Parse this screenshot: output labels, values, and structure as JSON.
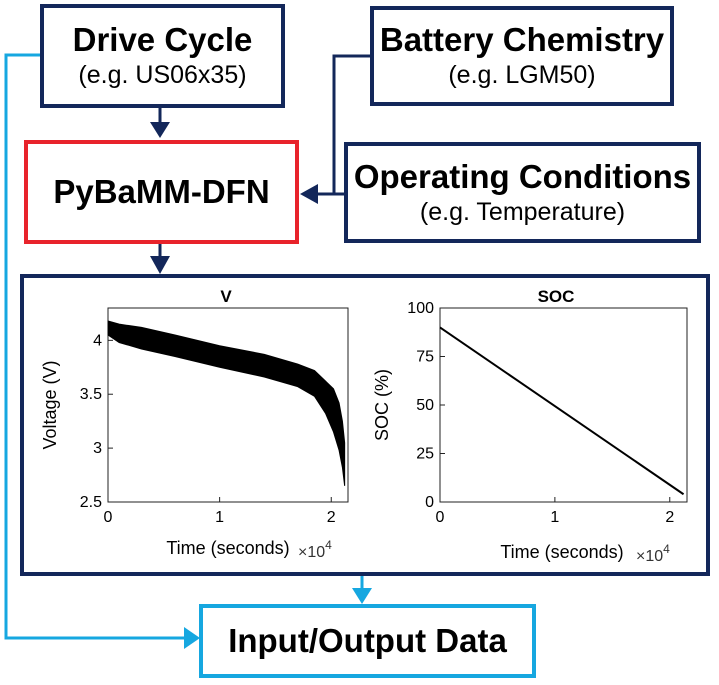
{
  "drive_cycle": {
    "title": "Drive Cycle",
    "subtitle": "(e.g. US06x35)"
  },
  "battery_chemistry": {
    "title": "Battery Chemistry",
    "subtitle": "(e.g. LGM50)"
  },
  "model": {
    "title": "PyBaMM-DFN"
  },
  "operating_conditions": {
    "title": "Operating Conditions",
    "subtitle": "(e.g. Temperature)"
  },
  "output": {
    "title": "Input/Output Data"
  },
  "colors": {
    "navy": "#13275a",
    "red": "#e8232b",
    "cyan": "#16a7e0"
  },
  "chart_data": [
    {
      "type": "line",
      "title": "V",
      "xlabel": "Time (seconds)",
      "x_multiplier": "×10^4",
      "ylabel": "Voltage (V)",
      "xlim": [
        0,
        2.15
      ],
      "ylim": [
        2.5,
        4.3
      ],
      "xticks": [
        "0",
        "1",
        "2"
      ],
      "yticks": [
        "2.5",
        "3",
        "3.5",
        "4"
      ],
      "series": [
        {
          "x": [
            0,
            0.1,
            0.3,
            0.6,
            1.0,
            1.4,
            1.7,
            1.85,
            1.95,
            2.02,
            2.07,
            2.1,
            2.12
          ],
          "y_upper": [
            4.18,
            4.15,
            4.12,
            4.05,
            3.95,
            3.87,
            3.78,
            3.72,
            3.62,
            3.55,
            3.42,
            3.25,
            3.05
          ],
          "y_lower": [
            4.05,
            3.98,
            3.92,
            3.85,
            3.75,
            3.66,
            3.57,
            3.48,
            3.32,
            3.15,
            2.98,
            2.82,
            2.65
          ]
        }
      ]
    },
    {
      "type": "line",
      "title": "SOC",
      "xlabel": "Time (seconds)",
      "x_multiplier": "×10^4",
      "ylabel": "SOC (%)",
      "xlim": [
        0,
        2.15
      ],
      "ylim": [
        0,
        100
      ],
      "xticks": [
        "0",
        "1",
        "2"
      ],
      "yticks": [
        "0",
        "25",
        "50",
        "75",
        "100"
      ],
      "series": [
        {
          "x": [
            0,
            2.12
          ],
          "y": [
            90,
            4
          ]
        }
      ]
    }
  ]
}
